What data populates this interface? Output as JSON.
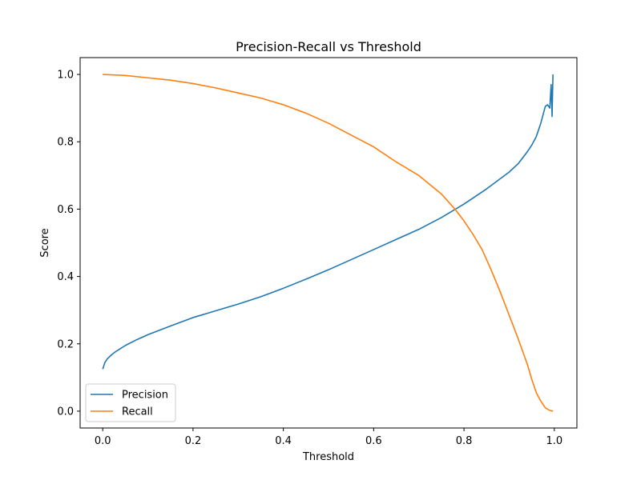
{
  "chart_data": {
    "type": "line",
    "title": "Precision-Recall vs Threshold",
    "xlabel": "Threshold",
    "ylabel": "Score",
    "xlim": [
      -0.05,
      1.05
    ],
    "ylim": [
      -0.05,
      1.05
    ],
    "xticks": [
      0.0,
      0.2,
      0.4,
      0.6,
      0.8,
      1.0
    ],
    "xtick_labels": [
      "0.0",
      "0.2",
      "0.4",
      "0.6",
      "0.8",
      "1.0"
    ],
    "yticks": [
      0.0,
      0.2,
      0.4,
      0.6,
      0.8,
      1.0
    ],
    "ytick_labels": [
      "0.0",
      "0.2",
      "0.4",
      "0.6",
      "0.8",
      "1.0"
    ],
    "grid": false,
    "legend_position": "lower-left",
    "series": [
      {
        "name": "Precision",
        "color": "#1f77b4",
        "x": [
          0.0,
          0.005,
          0.01,
          0.02,
          0.03,
          0.05,
          0.075,
          0.1,
          0.15,
          0.2,
          0.25,
          0.3,
          0.35,
          0.4,
          0.45,
          0.5,
          0.55,
          0.6,
          0.65,
          0.7,
          0.75,
          0.8,
          0.85,
          0.88,
          0.9,
          0.92,
          0.94,
          0.95,
          0.96,
          0.97,
          0.975,
          0.98,
          0.985,
          0.99,
          0.993,
          0.995,
          0.997
        ],
        "y": [
          0.125,
          0.145,
          0.155,
          0.168,
          0.178,
          0.195,
          0.212,
          0.227,
          0.253,
          0.278,
          0.298,
          0.318,
          0.34,
          0.365,
          0.392,
          0.42,
          0.45,
          0.48,
          0.51,
          0.54,
          0.575,
          0.615,
          0.66,
          0.69,
          0.71,
          0.735,
          0.77,
          0.79,
          0.815,
          0.855,
          0.88,
          0.905,
          0.91,
          0.9,
          0.97,
          0.875,
          1.0
        ]
      },
      {
        "name": "Recall",
        "color": "#ff7f0e",
        "x": [
          0.0,
          0.05,
          0.1,
          0.15,
          0.2,
          0.25,
          0.3,
          0.35,
          0.4,
          0.45,
          0.5,
          0.55,
          0.6,
          0.65,
          0.7,
          0.75,
          0.78,
          0.8,
          0.82,
          0.84,
          0.86,
          0.88,
          0.9,
          0.92,
          0.94,
          0.95,
          0.96,
          0.97,
          0.98,
          0.99,
          0.997
        ],
        "y": [
          1.0,
          0.997,
          0.99,
          0.983,
          0.973,
          0.96,
          0.945,
          0.93,
          0.91,
          0.885,
          0.855,
          0.82,
          0.785,
          0.74,
          0.7,
          0.645,
          0.6,
          0.565,
          0.525,
          0.48,
          0.42,
          0.355,
          0.285,
          0.215,
          0.14,
          0.095,
          0.055,
          0.03,
          0.01,
          0.002,
          0.0
        ]
      }
    ]
  }
}
